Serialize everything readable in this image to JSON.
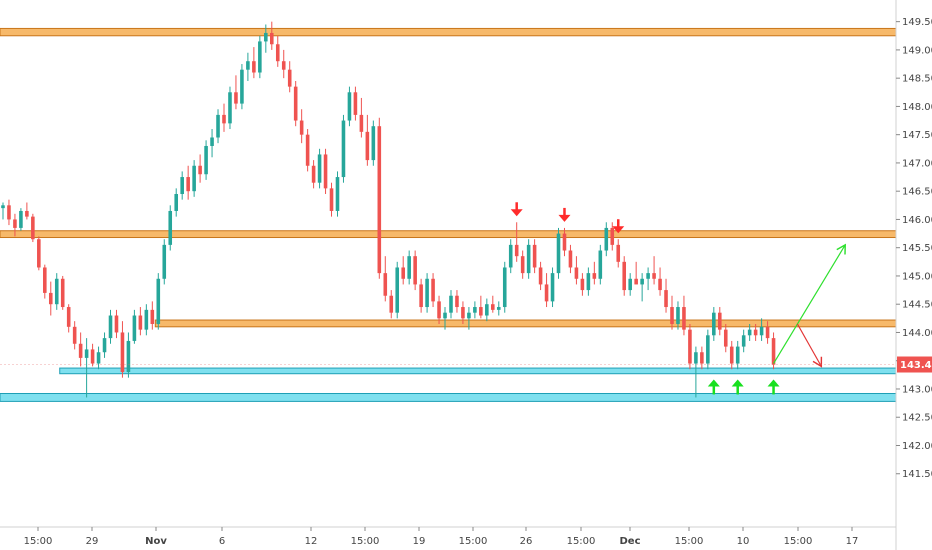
{
  "chart_data": {
    "type": "candlestick",
    "instrument_price_last": "143.433",
    "y_axis": {
      "range": [
        141.0,
        149.6
      ],
      "ticks": [
        "149.500",
        "149.000",
        "148.500",
        "148.000",
        "147.500",
        "147.000",
        "146.500",
        "146.000",
        "145.500",
        "145.000",
        "144.500",
        "144.000",
        "143.500",
        "143.000",
        "142.500",
        "142.000",
        "141.500"
      ]
    },
    "x_axis": {
      "ticks": [
        "15:00",
        "29",
        "Nov",
        "6",
        "12",
        "15:00",
        "19",
        "15:00",
        "26",
        "15:00",
        "Dec",
        "15:00",
        "10",
        "15:00",
        "17"
      ],
      "bars_visible": 150
    },
    "zones": [
      {
        "kind": "resistance",
        "color": "#f7b96a",
        "y_low": 149.25,
        "y_high": 149.38,
        "extends": "full"
      },
      {
        "kind": "resistance",
        "color": "#f7b96a",
        "y_low": 145.68,
        "y_high": 145.8,
        "extends": "full"
      },
      {
        "kind": "resistance",
        "color": "#f7b96a",
        "y_low": 144.1,
        "y_high": 144.22,
        "extends": "from-bar-26"
      },
      {
        "kind": "support",
        "color": "#7fe0ef",
        "y_low": 143.27,
        "y_high": 143.37,
        "extends": "from-bar-10"
      },
      {
        "kind": "support",
        "color": "#7fe0ef",
        "y_low": 142.78,
        "y_high": 142.92,
        "extends": "full"
      }
    ],
    "markers": {
      "down_arrows_color": "#ff2b2b",
      "up_arrows_color": "#18e01f",
      "down_arrows_at_bars": [
        86,
        94,
        103
      ],
      "up_arrows_at_bars": [
        119,
        123,
        129
      ]
    },
    "projections": [
      {
        "color": "#2ee02e",
        "from": [
          129,
          143.45
        ],
        "to": [
          141,
          145.55
        ]
      },
      {
        "color": "#e33535",
        "from": [
          133,
          144.15
        ],
        "to": [
          137,
          143.4
        ]
      }
    ],
    "candles": [
      [
        146.2,
        146.3,
        146.0,
        146.25
      ],
      [
        146.25,
        146.35,
        145.9,
        146.0
      ],
      [
        146.0,
        146.1,
        145.7,
        145.85
      ],
      [
        145.85,
        146.2,
        145.8,
        146.15
      ],
      [
        146.15,
        146.3,
        146.0,
        146.05
      ],
      [
        146.05,
        146.1,
        145.6,
        145.65
      ],
      [
        145.65,
        145.7,
        145.1,
        145.15
      ],
      [
        145.15,
        145.2,
        144.6,
        144.7
      ],
      [
        144.7,
        144.9,
        144.3,
        144.5
      ],
      [
        144.5,
        145.05,
        144.4,
        144.95
      ],
      [
        144.95,
        145.0,
        144.4,
        144.45
      ],
      [
        144.45,
        144.5,
        144.0,
        144.1
      ],
      [
        144.1,
        144.2,
        143.7,
        143.8
      ],
      [
        143.8,
        144.0,
        143.4,
        143.55
      ],
      [
        143.55,
        143.9,
        142.85,
        143.7
      ],
      [
        143.7,
        143.8,
        143.4,
        143.45
      ],
      [
        143.45,
        143.75,
        143.35,
        143.65
      ],
      [
        143.65,
        144.0,
        143.55,
        143.9
      ],
      [
        143.9,
        144.4,
        143.8,
        144.3
      ],
      [
        144.3,
        144.4,
        143.9,
        144.0
      ],
      [
        144.0,
        144.2,
        143.2,
        143.3
      ],
      [
        143.3,
        144.0,
        143.2,
        143.85
      ],
      [
        143.85,
        144.4,
        143.8,
        144.3
      ],
      [
        144.3,
        144.45,
        143.95,
        144.05
      ],
      [
        144.05,
        144.5,
        143.95,
        144.4
      ],
      [
        144.4,
        144.55,
        144.05,
        144.15
      ],
      [
        144.15,
        145.05,
        144.05,
        144.95
      ],
      [
        144.95,
        145.65,
        144.85,
        145.55
      ],
      [
        145.55,
        146.25,
        145.45,
        146.15
      ],
      [
        146.15,
        146.55,
        146.05,
        146.45
      ],
      [
        146.45,
        146.85,
        146.35,
        146.75
      ],
      [
        146.75,
        146.95,
        146.35,
        146.5
      ],
      [
        146.5,
        147.05,
        146.4,
        146.95
      ],
      [
        146.95,
        147.15,
        146.65,
        146.8
      ],
      [
        146.8,
        147.4,
        146.7,
        147.3
      ],
      [
        147.3,
        147.6,
        147.1,
        147.45
      ],
      [
        147.45,
        147.95,
        147.35,
        147.85
      ],
      [
        147.85,
        148.05,
        147.55,
        147.7
      ],
      [
        147.7,
        148.35,
        147.6,
        148.25
      ],
      [
        148.25,
        148.55,
        147.95,
        148.05
      ],
      [
        148.05,
        148.75,
        147.95,
        148.65
      ],
      [
        148.65,
        148.95,
        148.45,
        148.8
      ],
      [
        148.8,
        149.05,
        148.5,
        148.6
      ],
      [
        148.6,
        149.25,
        148.5,
        149.15
      ],
      [
        149.15,
        149.45,
        148.95,
        149.3
      ],
      [
        149.3,
        149.5,
        149.0,
        149.1
      ],
      [
        149.1,
        149.25,
        148.7,
        148.8
      ],
      [
        148.8,
        149.0,
        148.5,
        148.65
      ],
      [
        148.65,
        148.8,
        148.25,
        148.35
      ],
      [
        148.35,
        148.45,
        147.65,
        147.75
      ],
      [
        147.75,
        147.95,
        147.35,
        147.5
      ],
      [
        147.5,
        147.6,
        146.85,
        146.95
      ],
      [
        146.95,
        147.05,
        146.55,
        146.65
      ],
      [
        146.65,
        147.25,
        146.55,
        147.15
      ],
      [
        147.15,
        147.25,
        146.45,
        146.55
      ],
      [
        146.55,
        146.65,
        146.05,
        146.15
      ],
      [
        146.15,
        146.85,
        146.05,
        146.75
      ],
      [
        146.75,
        147.85,
        146.65,
        147.75
      ],
      [
        147.75,
        148.35,
        147.65,
        148.25
      ],
      [
        148.25,
        148.35,
        147.75,
        147.85
      ],
      [
        147.85,
        148.15,
        147.45,
        147.55
      ],
      [
        147.55,
        147.85,
        146.95,
        147.05
      ],
      [
        147.05,
        147.75,
        146.95,
        147.65
      ],
      [
        147.65,
        147.8,
        144.95,
        145.05
      ],
      [
        145.05,
        145.35,
        144.55,
        144.65
      ],
      [
        144.65,
        144.75,
        144.25,
        144.35
      ],
      [
        144.35,
        145.25,
        144.25,
        145.15
      ],
      [
        145.15,
        145.35,
        144.85,
        144.95
      ],
      [
        144.95,
        145.45,
        144.85,
        145.35
      ],
      [
        145.35,
        145.45,
        144.75,
        144.85
      ],
      [
        144.85,
        144.95,
        144.35,
        144.45
      ],
      [
        144.45,
        145.05,
        144.35,
        144.95
      ],
      [
        144.95,
        145.05,
        144.45,
        144.55
      ],
      [
        144.55,
        144.65,
        144.15,
        144.25
      ],
      [
        144.25,
        144.45,
        144.05,
        144.35
      ],
      [
        144.35,
        144.75,
        144.25,
        144.65
      ],
      [
        144.65,
        144.75,
        144.35,
        144.45
      ],
      [
        144.45,
        144.55,
        144.15,
        144.25
      ],
      [
        144.25,
        144.45,
        144.05,
        144.35
      ],
      [
        144.35,
        144.55,
        144.25,
        144.45
      ],
      [
        144.45,
        144.65,
        144.25,
        144.3
      ],
      [
        144.3,
        144.6,
        144.2,
        144.5
      ],
      [
        144.5,
        144.65,
        144.35,
        144.4
      ],
      [
        144.4,
        144.55,
        144.3,
        144.45
      ],
      [
        144.45,
        145.25,
        144.35,
        145.15
      ],
      [
        145.15,
        145.65,
        145.05,
        145.55
      ],
      [
        145.55,
        145.95,
        145.25,
        145.35
      ],
      [
        145.35,
        145.45,
        144.95,
        145.05
      ],
      [
        145.05,
        145.65,
        144.95,
        145.55
      ],
      [
        145.55,
        145.65,
        145.05,
        145.15
      ],
      [
        145.15,
        145.25,
        144.75,
        144.85
      ],
      [
        144.85,
        145.05,
        144.45,
        144.55
      ],
      [
        144.55,
        145.15,
        144.45,
        145.05
      ],
      [
        145.05,
        145.85,
        144.95,
        145.75
      ],
      [
        145.75,
        145.85,
        145.35,
        145.45
      ],
      [
        145.45,
        145.55,
        145.05,
        145.15
      ],
      [
        145.15,
        145.35,
        144.85,
        144.95
      ],
      [
        144.95,
        145.05,
        144.65,
        144.75
      ],
      [
        144.75,
        145.15,
        144.65,
        145.05
      ],
      [
        145.05,
        145.25,
        144.85,
        144.95
      ],
      [
        144.95,
        145.55,
        144.85,
        145.45
      ],
      [
        145.45,
        145.95,
        145.35,
        145.85
      ],
      [
        145.85,
        145.95,
        145.45,
        145.55
      ],
      [
        145.55,
        145.65,
        145.15,
        145.25
      ],
      [
        145.25,
        145.35,
        144.65,
        144.75
      ],
      [
        144.75,
        145.05,
        144.65,
        144.95
      ],
      [
        144.95,
        145.25,
        144.85,
        144.85
      ],
      [
        144.85,
        145.05,
        144.55,
        144.95
      ],
      [
        144.95,
        145.15,
        144.75,
        145.05
      ],
      [
        145.05,
        145.35,
        144.85,
        144.95
      ],
      [
        144.95,
        145.15,
        144.65,
        144.75
      ],
      [
        144.75,
        144.95,
        144.35,
        144.45
      ],
      [
        144.45,
        144.65,
        144.05,
        144.15
      ],
      [
        144.15,
        144.55,
        144.05,
        144.45
      ],
      [
        144.45,
        144.65,
        143.95,
        144.05
      ],
      [
        144.05,
        144.15,
        143.35,
        143.45
      ],
      [
        143.45,
        143.75,
        142.85,
        143.65
      ],
      [
        143.65,
        143.75,
        143.35,
        143.45
      ],
      [
        143.45,
        144.05,
        143.35,
        143.95
      ],
      [
        143.95,
        144.45,
        143.85,
        144.35
      ],
      [
        144.35,
        144.45,
        143.95,
        144.05
      ],
      [
        144.05,
        144.15,
        143.65,
        143.75
      ],
      [
        143.75,
        143.85,
        143.35,
        143.45
      ],
      [
        143.45,
        143.85,
        143.35,
        143.75
      ],
      [
        143.75,
        144.05,
        143.65,
        143.95
      ],
      [
        143.95,
        144.15,
        143.85,
        144.05
      ],
      [
        144.05,
        144.15,
        143.85,
        143.95
      ],
      [
        143.95,
        144.25,
        143.85,
        144.1
      ],
      [
        144.1,
        144.2,
        143.8,
        143.9
      ],
      [
        143.9,
        144.0,
        143.35,
        143.43
      ]
    ]
  }
}
